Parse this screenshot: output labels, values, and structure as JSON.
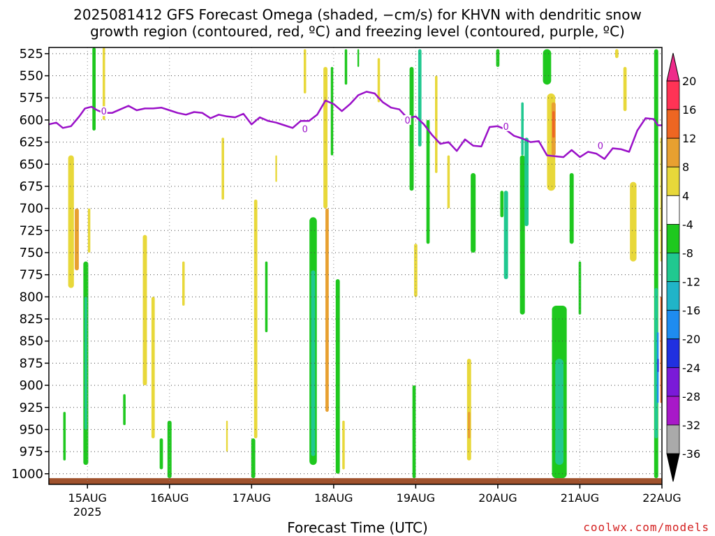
{
  "chart_data": {
    "type": "heatmap",
    "title_line1": "2025081412 GFS Forecast Omega (shaded, −cm/s) for KHVN with dendritic snow",
    "title_line2": "growth region (contoured, red, ºC) and freezing level (contoured, purple, ºC)",
    "xlabel": "Forecast Time (UTC)",
    "ylabel": "",
    "x_ticks": [
      {
        "day": 15,
        "label": "15AUG",
        "sub": "2025"
      },
      {
        "day": 16,
        "label": "16AUG",
        "sub": ""
      },
      {
        "day": 17,
        "label": "17AUG",
        "sub": ""
      },
      {
        "day": 18,
        "label": "18AUG",
        "sub": ""
      },
      {
        "day": 19,
        "label": "19AUG",
        "sub": ""
      },
      {
        "day": 20,
        "label": "20AUG",
        "sub": ""
      },
      {
        "day": 21,
        "label": "21AUG",
        "sub": ""
      },
      {
        "day": 22,
        "label": "22AUG",
        "sub": ""
      }
    ],
    "xlim": [
      14.53,
      22.0
    ],
    "y_ticks": [
      525,
      550,
      575,
      600,
      625,
      650,
      675,
      700,
      725,
      750,
      775,
      800,
      825,
      850,
      875,
      900,
      925,
      950,
      975,
      1000
    ],
    "ylim": [
      1012,
      518
    ],
    "colorbar": {
      "ticks": [
        20,
        16,
        12,
        8,
        4,
        -4,
        -8,
        -12,
        -16,
        -20,
        -24,
        -28,
        -32,
        -36
      ],
      "bands": [
        {
          "from": 16,
          "to": 20,
          "color": "#ff3355"
        },
        {
          "from": 12,
          "to": 16,
          "color": "#ee6622"
        },
        {
          "from": 8,
          "to": 12,
          "color": "#e8a030"
        },
        {
          "from": 4,
          "to": 8,
          "color": "#e8d83a"
        },
        {
          "from": -4,
          "to": 4,
          "color": "#ffffff"
        },
        {
          "from": -8,
          "to": -4,
          "color": "#1ec81e"
        },
        {
          "from": -12,
          "to": -8,
          "color": "#20c890"
        },
        {
          "from": -16,
          "to": -12,
          "color": "#20b4c8"
        },
        {
          "from": -20,
          "to": -16,
          "color": "#1e8cf0"
        },
        {
          "from": -24,
          "to": -20,
          "color": "#2030e0"
        },
        {
          "from": -28,
          "to": -24,
          "color": "#7a1ad8"
        },
        {
          "from": -32,
          "to": -28,
          "color": "#a818c8"
        },
        {
          "from": -36,
          "to": -32,
          "color": "#aaaaaa"
        }
      ],
      "top_arrow_color": "#ee2a8a",
      "bottom_arrow_color": "#000000"
    },
    "freezing_level": {
      "color": "#9a10c8",
      "label": "0",
      "points": [
        [
          14.53,
          605
        ],
        [
          14.62,
          603
        ],
        [
          14.7,
          609
        ],
        [
          14.8,
          607
        ],
        [
          14.9,
          596
        ],
        [
          14.97,
          587
        ],
        [
          15.05,
          585
        ],
        [
          15.12,
          589
        ],
        [
          15.2,
          592
        ],
        [
          15.3,
          592
        ],
        [
          15.4,
          588
        ],
        [
          15.5,
          584
        ],
        [
          15.6,
          589
        ],
        [
          15.7,
          587
        ],
        [
          15.8,
          587
        ],
        [
          15.9,
          586
        ],
        [
          16.0,
          589
        ],
        [
          16.1,
          592
        ],
        [
          16.2,
          594
        ],
        [
          16.3,
          591
        ],
        [
          16.4,
          592
        ],
        [
          16.5,
          598
        ],
        [
          16.6,
          594
        ],
        [
          16.7,
          596
        ],
        [
          16.8,
          597
        ],
        [
          16.9,
          593
        ],
        [
          17.0,
          605
        ],
        [
          17.1,
          597
        ],
        [
          17.2,
          601
        ],
        [
          17.3,
          603
        ],
        [
          17.4,
          606
        ],
        [
          17.5,
          609
        ],
        [
          17.6,
          601
        ],
        [
          17.7,
          601
        ],
        [
          17.8,
          594
        ],
        [
          17.9,
          578
        ],
        [
          18.0,
          582
        ],
        [
          18.1,
          590
        ],
        [
          18.2,
          582
        ],
        [
          18.3,
          572
        ],
        [
          18.4,
          568
        ],
        [
          18.5,
          570
        ],
        [
          18.6,
          580
        ],
        [
          18.7,
          586
        ],
        [
          18.8,
          588
        ],
        [
          18.9,
          598
        ],
        [
          19.0,
          596
        ],
        [
          19.1,
          605
        ],
        [
          19.2,
          617
        ],
        [
          19.3,
          627
        ],
        [
          19.4,
          625
        ],
        [
          19.5,
          635
        ],
        [
          19.6,
          622
        ],
        [
          19.7,
          629
        ],
        [
          19.8,
          630
        ],
        [
          19.9,
          608
        ],
        [
          20.0,
          607
        ],
        [
          20.1,
          611
        ],
        [
          20.2,
          618
        ],
        [
          20.3,
          621
        ],
        [
          20.4,
          625
        ],
        [
          20.5,
          624
        ],
        [
          20.6,
          640
        ],
        [
          20.7,
          641
        ],
        [
          20.8,
          642
        ],
        [
          20.9,
          634
        ],
        [
          21.0,
          642
        ],
        [
          21.1,
          636
        ],
        [
          21.2,
          638
        ],
        [
          21.3,
          644
        ],
        [
          21.4,
          632
        ],
        [
          21.5,
          633
        ],
        [
          21.6,
          636
        ],
        [
          21.7,
          612
        ],
        [
          21.8,
          598
        ],
        [
          21.9,
          599
        ],
        [
          21.95,
          606
        ],
        [
          22.0,
          606
        ]
      ],
      "label_positions": [
        [
          15.2,
          590
        ],
        [
          17.65,
          610
        ],
        [
          18.9,
          600
        ],
        [
          20.1,
          607
        ],
        [
          21.25,
          629
        ]
      ]
    },
    "omega_patches": [
      {
        "d": 15.08,
        "p1": 518,
        "p2": 612,
        "w": 0.04,
        "v": -6
      },
      {
        "d": 15.2,
        "p1": 518,
        "p2": 600,
        "w": 0.03,
        "v": 6
      },
      {
        "d": 14.8,
        "p1": 640,
        "p2": 790,
        "w": 0.07,
        "v": 6
      },
      {
        "d": 14.87,
        "p1": 700,
        "p2": 770,
        "w": 0.05,
        "v": 10
      },
      {
        "d": 14.98,
        "p1": 760,
        "p2": 990,
        "w": 0.06,
        "v": -6
      },
      {
        "d": 14.98,
        "p1": 800,
        "p2": 950,
        "w": 0.03,
        "v": -10
      },
      {
        "d": 14.72,
        "p1": 930,
        "p2": 985,
        "w": 0.03,
        "v": -6
      },
      {
        "d": 15.02,
        "p1": 700,
        "p2": 750,
        "w": 0.03,
        "v": 6
      },
      {
        "d": 15.45,
        "p1": 910,
        "p2": 945,
        "w": 0.03,
        "v": -6
      },
      {
        "d": 15.7,
        "p1": 730,
        "p2": 900,
        "w": 0.05,
        "v": 6
      },
      {
        "d": 15.8,
        "p1": 800,
        "p2": 960,
        "w": 0.04,
        "v": 6
      },
      {
        "d": 15.9,
        "p1": 960,
        "p2": 995,
        "w": 0.04,
        "v": -6
      },
      {
        "d": 16.0,
        "p1": 940,
        "p2": 1005,
        "w": 0.05,
        "v": -6
      },
      {
        "d": 16.17,
        "p1": 760,
        "p2": 810,
        "w": 0.03,
        "v": 6
      },
      {
        "d": 16.65,
        "p1": 620,
        "p2": 690,
        "w": 0.03,
        "v": 6
      },
      {
        "d": 16.7,
        "p1": 940,
        "p2": 975,
        "w": 0.02,
        "v": 6
      },
      {
        "d": 17.05,
        "p1": 690,
        "p2": 960,
        "w": 0.04,
        "v": 6
      },
      {
        "d": 17.02,
        "p1": 960,
        "p2": 1005,
        "w": 0.05,
        "v": -6
      },
      {
        "d": 17.18,
        "p1": 760,
        "p2": 840,
        "w": 0.03,
        "v": -6
      },
      {
        "d": 17.3,
        "p1": 640,
        "p2": 670,
        "w": 0.02,
        "v": 6
      },
      {
        "d": 17.65,
        "p1": 520,
        "p2": 570,
        "w": 0.03,
        "v": 6
      },
      {
        "d": 17.75,
        "p1": 710,
        "p2": 990,
        "w": 0.09,
        "v": -6
      },
      {
        "d": 17.75,
        "p1": 770,
        "p2": 980,
        "w": 0.05,
        "v": -10
      },
      {
        "d": 17.9,
        "p1": 540,
        "p2": 700,
        "w": 0.05,
        "v": 6
      },
      {
        "d": 17.92,
        "p1": 700,
        "p2": 930,
        "w": 0.04,
        "v": 10
      },
      {
        "d": 17.98,
        "p1": 540,
        "p2": 640,
        "w": 0.03,
        "v": -6
      },
      {
        "d": 18.05,
        "p1": 780,
        "p2": 1000,
        "w": 0.05,
        "v": -6
      },
      {
        "d": 18.12,
        "p1": 940,
        "p2": 995,
        "w": 0.03,
        "v": 6
      },
      {
        "d": 18.15,
        "p1": 520,
        "p2": 560,
        "w": 0.03,
        "v": -6
      },
      {
        "d": 18.3,
        "p1": 520,
        "p2": 540,
        "w": 0.02,
        "v": -6
      },
      {
        "d": 18.55,
        "p1": 530,
        "p2": 580,
        "w": 0.03,
        "v": 6
      },
      {
        "d": 18.95,
        "p1": 540,
        "p2": 680,
        "w": 0.05,
        "v": -6
      },
      {
        "d": 19.05,
        "p1": 520,
        "p2": 630,
        "w": 0.04,
        "v": -10
      },
      {
        "d": 19.15,
        "p1": 600,
        "p2": 740,
        "w": 0.04,
        "v": -6
      },
      {
        "d": 19.25,
        "p1": 550,
        "p2": 660,
        "w": 0.03,
        "v": 6
      },
      {
        "d": 19.0,
        "p1": 740,
        "p2": 800,
        "w": 0.04,
        "v": 6
      },
      {
        "d": 18.98,
        "p1": 900,
        "p2": 1005,
        "w": 0.04,
        "v": -6
      },
      {
        "d": 19.4,
        "p1": 640,
        "p2": 700,
        "w": 0.03,
        "v": 6
      },
      {
        "d": 19.65,
        "p1": 870,
        "p2": 985,
        "w": 0.05,
        "v": 6
      },
      {
        "d": 19.65,
        "p1": 930,
        "p2": 960,
        "w": 0.03,
        "v": 10
      },
      {
        "d": 19.7,
        "p1": 660,
        "p2": 750,
        "w": 0.06,
        "v": -6
      },
      {
        "d": 20.0,
        "p1": 520,
        "p2": 540,
        "w": 0.04,
        "v": -6
      },
      {
        "d": 20.05,
        "p1": 680,
        "p2": 710,
        "w": 0.04,
        "v": -6
      },
      {
        "d": 20.1,
        "p1": 680,
        "p2": 780,
        "w": 0.05,
        "v": -10
      },
      {
        "d": 20.3,
        "p1": 640,
        "p2": 820,
        "w": 0.06,
        "v": -6
      },
      {
        "d": 20.35,
        "p1": 620,
        "p2": 720,
        "w": 0.05,
        "v": -10
      },
      {
        "d": 20.3,
        "p1": 580,
        "p2": 640,
        "w": 0.03,
        "v": -10
      },
      {
        "d": 20.65,
        "p1": 570,
        "p2": 680,
        "w": 0.1,
        "v": 6
      },
      {
        "d": 20.68,
        "p1": 580,
        "p2": 640,
        "w": 0.05,
        "v": 10
      },
      {
        "d": 20.68,
        "p1": 590,
        "p2": 620,
        "w": 0.03,
        "v": 14
      },
      {
        "d": 20.6,
        "p1": 520,
        "p2": 560,
        "w": 0.1,
        "v": -6
      },
      {
        "d": 20.75,
        "p1": 810,
        "p2": 1005,
        "w": 0.18,
        "v": -6
      },
      {
        "d": 20.75,
        "p1": 870,
        "p2": 990,
        "w": 0.1,
        "v": -10
      },
      {
        "d": 20.9,
        "p1": 660,
        "p2": 740,
        "w": 0.05,
        "v": -6
      },
      {
        "d": 21.0,
        "p1": 760,
        "p2": 820,
        "w": 0.03,
        "v": -6
      },
      {
        "d": 21.45,
        "p1": 520,
        "p2": 530,
        "w": 0.04,
        "v": 6
      },
      {
        "d": 21.55,
        "p1": 540,
        "p2": 590,
        "w": 0.04,
        "v": 6
      },
      {
        "d": 21.65,
        "p1": 670,
        "p2": 760,
        "w": 0.08,
        "v": 6
      },
      {
        "d": 21.93,
        "p1": 520,
        "p2": 1005,
        "w": 0.05,
        "v": -6
      },
      {
        "d": 21.93,
        "p1": 790,
        "p2": 960,
        "w": 0.04,
        "v": -10
      },
      {
        "d": 21.95,
        "p1": 840,
        "p2": 920,
        "w": 0.02,
        "v": -18
      },
      {
        "d": 21.95,
        "p1": 870,
        "p2": 885,
        "w": 0.01,
        "v": -22
      },
      {
        "d": 21.99,
        "p1": 620,
        "p2": 760,
        "w": 0.02,
        "v": 6
      },
      {
        "d": 21.99,
        "p1": 800,
        "p2": 920,
        "w": 0.02,
        "v": 12
      }
    ],
    "terrain_color": "#a0522d",
    "grid": true
  },
  "credit": "coolwx.com/models"
}
